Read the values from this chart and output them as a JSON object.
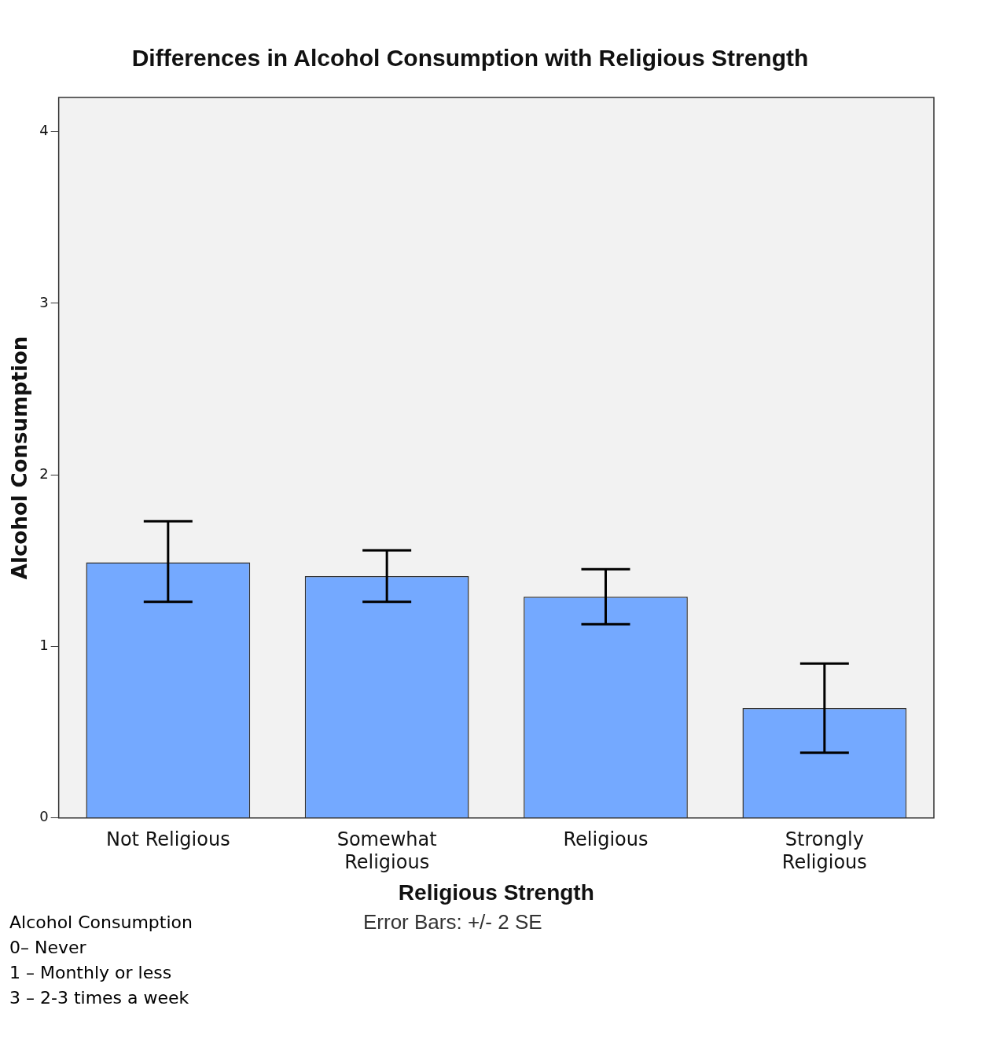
{
  "chart_data": {
    "type": "bar",
    "title": "Differences in Alcohol Consumption with Religious Strength",
    "xlabel": "Religious Strength",
    "ylabel": "Alcohol Consumption",
    "categories": [
      "Not Religious",
      "Somewhat Religious",
      "Religious",
      "Strongly Religious"
    ],
    "values": [
      1.49,
      1.41,
      1.29,
      0.64
    ],
    "errors": [
      [
        1.26,
        1.73
      ],
      [
        1.26,
        1.56
      ],
      [
        1.13,
        1.45
      ],
      [
        0.38,
        0.9
      ]
    ],
    "color": "#74a9ff",
    "ylim": [
      0,
      4.2
    ],
    "yticks": [
      0,
      1,
      2,
      3,
      4
    ],
    "grid": false,
    "legend": false,
    "annotations": [
      "Alcohol Consumption\n0– Never\n1 – Monthly or less\n3 – 2-3 times a week",
      "Error Bars: +/- 2 SE"
    ]
  }
}
